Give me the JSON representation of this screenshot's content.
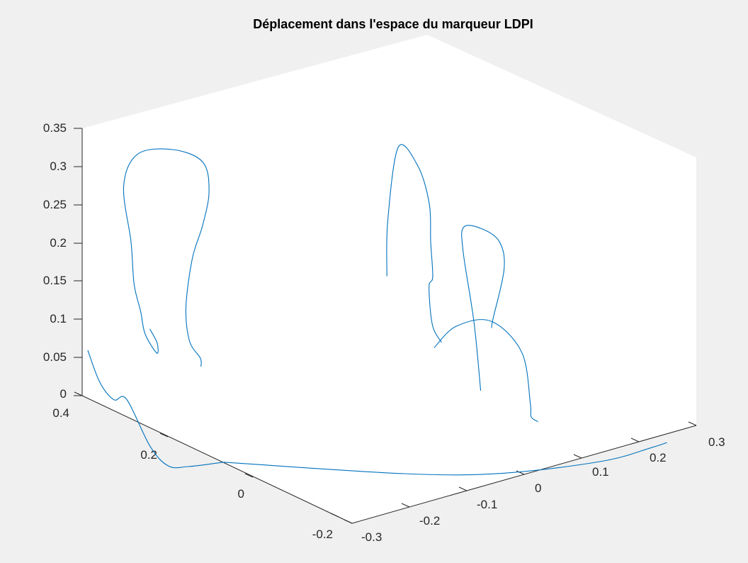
{
  "chart_data": {
    "type": "line3d",
    "title": "Déplacement dans l'espace du marqueur LDPI",
    "xlabel": "",
    "ylabel": "",
    "zlabel": "",
    "grid": false,
    "series_color": "#0072BD",
    "background_color": "#f0f0f0",
    "axes_background_color": "#ffffff",
    "x_ticks": [
      "-0.3",
      "-0.2",
      "-0.1",
      "0",
      "0.1",
      "0.2",
      "0.3"
    ],
    "y_ticks": [
      "-0.2",
      "0",
      "0.2",
      "0.4"
    ],
    "z_ticks": [
      "0",
      "0.05",
      "0.1",
      "0.15",
      "0.2",
      "0.25",
      "0.3",
      "0.35"
    ],
    "xlim": [
      -0.3,
      0.3
    ],
    "ylim": [
      -0.25,
      0.4
    ],
    "zlim": [
      0,
      0.35
    ],
    "series": [
      {
        "points": [
          [
            -0.24,
            0.32,
            0.095
          ],
          [
            -0.22,
            0.33,
            0.07
          ],
          [
            -0.235,
            0.31,
            0.065
          ],
          [
            -0.23,
            0.345,
            0.08
          ],
          [
            -0.245,
            0.335,
            0.115
          ],
          [
            -0.26,
            0.33,
            0.155
          ],
          [
            -0.28,
            0.31,
            0.22
          ],
          [
            -0.3,
            0.3,
            0.3
          ],
          [
            -0.29,
            0.28,
            0.345
          ],
          [
            -0.25,
            0.25,
            0.35
          ],
          [
            -0.22,
            0.22,
            0.335
          ],
          [
            -0.22,
            0.205,
            0.3
          ],
          [
            -0.235,
            0.2,
            0.26
          ],
          [
            -0.26,
            0.19,
            0.225
          ],
          [
            -0.3,
            0.15,
            0.18
          ],
          [
            -0.33,
            0.1,
            0.155
          ],
          [
            -0.34,
            0.06,
            0.145
          ],
          [
            -0.35,
            0.045,
            0.14
          ]
        ]
      },
      {
        "points": [
          [
            -0.08,
            -0.03,
            0.22
          ],
          [
            -0.075,
            -0.025,
            0.29
          ],
          [
            -0.06,
            -0.03,
            0.385
          ],
          [
            -0.04,
            -0.05,
            0.36
          ],
          [
            -0.035,
            -0.07,
            0.315
          ],
          [
            -0.04,
            -0.08,
            0.27
          ],
          [
            -0.04,
            -0.085,
            0.225
          ],
          [
            -0.05,
            -0.09,
            0.215
          ],
          [
            -0.055,
            -0.105,
            0.17
          ],
          [
            -0.05,
            -0.12,
            0.15
          ]
        ]
      },
      {
        "points": [
          [
            -0.07,
            -0.13,
            0.15
          ],
          [
            -0.05,
            -0.155,
            0.18
          ],
          [
            0.0,
            -0.17,
            0.18
          ],
          [
            0.05,
            -0.175,
            0.13
          ],
          [
            0.065,
            -0.175,
            0.06
          ],
          [
            0.07,
            -0.17,
            0.04
          ],
          [
            0.075,
            -0.18,
            0.035
          ]
        ]
      },
      {
        "points": [
          [
            0.04,
            -0.09,
            0.06
          ],
          [
            0.05,
            -0.06,
            0.14
          ],
          [
            0.06,
            -0.02,
            0.22
          ],
          [
            0.09,
            0.02,
            0.235
          ],
          [
            0.15,
            0.06,
            0.21
          ],
          [
            0.21,
            0.1,
            0.17
          ],
          [
            0.24,
            0.13,
            0.12
          ],
          [
            0.235,
            0.15,
            0.05
          ],
          [
            0.24,
            0.16,
            0.035
          ]
        ]
      },
      {
        "points": [
          [
            -0.33,
            0.345,
            0.08
          ],
          [
            -0.32,
            0.33,
            0.04
          ],
          [
            -0.31,
            0.31,
            0.02
          ],
          [
            -0.295,
            0.3,
            0.02
          ],
          [
            -0.29,
            0.25,
            -0.03
          ],
          [
            -0.28,
            0.22,
            -0.05
          ],
          [
            -0.26,
            0.2,
            -0.05
          ],
          [
            -0.22,
            0.17,
            -0.045
          ]
        ]
      },
      {
        "points": [
          [
            -0.22,
            0.17,
            -0.045
          ],
          [
            -0.05,
            -0.03,
            -0.045
          ],
          [
            0.05,
            -0.13,
            -0.04
          ],
          [
            0.15,
            -0.23,
            -0.02
          ],
          [
            0.2,
            -0.28,
            0.0
          ],
          [
            0.22,
            -0.29,
            0.005
          ]
        ]
      }
    ]
  }
}
